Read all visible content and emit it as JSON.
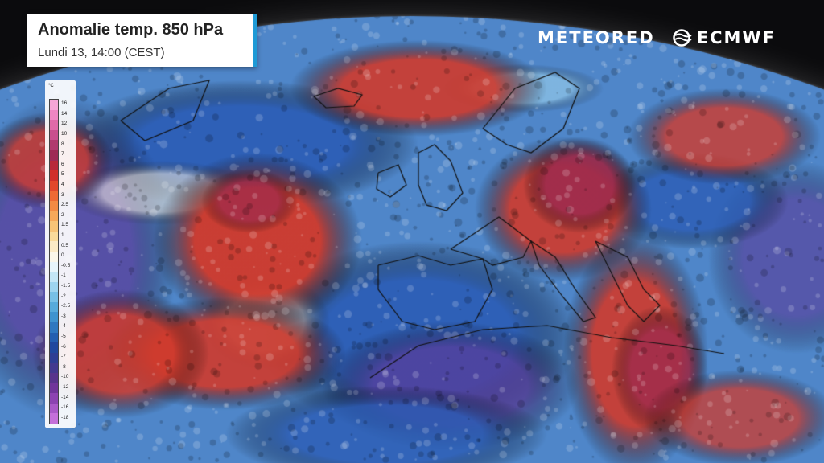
{
  "header": {
    "title": "Anomalie temp. 850 hPa",
    "subtitle": "Lundi 13, 14:00 (CEST)"
  },
  "logos": {
    "left": "METEORED",
    "right": "ECMWF"
  },
  "legend": {
    "unit": "°C",
    "labels": [
      "16",
      "14",
      "12",
      "10",
      "8",
      "7",
      "6",
      "5",
      "4",
      "3",
      "2.5",
      "2",
      "1.5",
      "1",
      "0.5",
      "0",
      "-0.5",
      "-1",
      "-1.5",
      "-2",
      "-2.5",
      "-3",
      "-4",
      "-5",
      "-6",
      "-7",
      "-8",
      "-10",
      "-12",
      "-14",
      "-16",
      "-18"
    ],
    "colors": [
      "#f5a6d6",
      "#ee86c2",
      "#e06aa8",
      "#c9508e",
      "#b03a6e",
      "#9e2a55",
      "#b8283a",
      "#d0302a",
      "#e2482c",
      "#ee6a34",
      "#f38a44",
      "#f6a85a",
      "#f8c477",
      "#fadb9b",
      "#fcebc6",
      "#fbf7ea",
      "#e8f5fb",
      "#c4e6f6",
      "#9ed4ef",
      "#78c0e6",
      "#57aadb",
      "#3f93cf",
      "#2f78c0",
      "#245fb0",
      "#20489e",
      "#2e3e94",
      "#43398f",
      "#58348c",
      "#70359a",
      "#8c43b1",
      "#a959c7",
      "#c470d9"
    ],
    "sample_colors": {
      "warm": "#d03a2c",
      "hot": "#9c2a4e",
      "cold": "#2b5cb5",
      "very_cold": "#5a3a98",
      "neutral": "#f6eee0"
    }
  },
  "colors": {
    "title_accent": "#1e9ad6",
    "space": "#0b0b0d"
  }
}
